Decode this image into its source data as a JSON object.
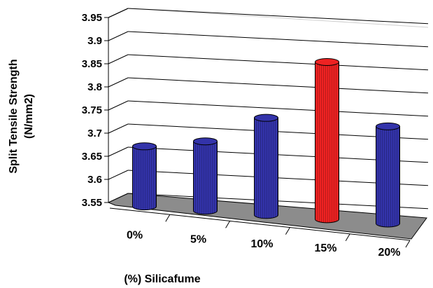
{
  "chart_data": {
    "type": "bar",
    "title": "",
    "xlabel": "(%) Silicafume",
    "ylabel_line1": "Split Tensile Strength",
    "ylabel_line2": "(N/mm2)",
    "categories": [
      "0%",
      "5%",
      "10%",
      "15%",
      "20%"
    ],
    "values": [
      3.68,
      3.7,
      3.76,
      3.89,
      3.76
    ],
    "ylim": [
      3.55,
      3.95
    ],
    "yticks": [
      "3.55",
      "3.6",
      "3.65",
      "3.7",
      "3.75",
      "3.8",
      "3.85",
      "3.9",
      "3.95"
    ],
    "style": "3d-cylinder",
    "grid": true,
    "legend": "none",
    "colors": {
      "bar": "#3333aa",
      "highlight": "#ee2222",
      "floor": "#8c8c8c"
    },
    "highlight_index": 3
  }
}
